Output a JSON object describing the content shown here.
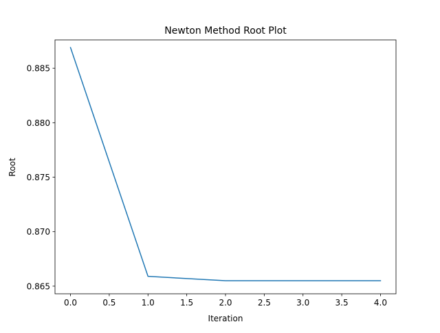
{
  "chart_data": {
    "type": "line",
    "title": "Newton Method Root Plot",
    "xlabel": "Iteration",
    "ylabel": "Root",
    "xlim": [
      -0.2,
      4.2
    ],
    "ylim": [
      0.8643,
      0.8876
    ],
    "xticks": [
      0.0,
      0.5,
      1.0,
      1.5,
      2.0,
      2.5,
      3.0,
      3.5,
      4.0
    ],
    "xtick_labels": [
      "0.0",
      "0.5",
      "1.0",
      "1.5",
      "2.0",
      "2.5",
      "3.0",
      "3.5",
      "4.0"
    ],
    "yticks": [
      0.865,
      0.87,
      0.875,
      0.88,
      0.885
    ],
    "ytick_labels": [
      "0.865",
      "0.870",
      "0.875",
      "0.880",
      "0.885"
    ],
    "grid": false,
    "series": [
      {
        "color": "#1f77b4",
        "x": [
          0,
          1,
          2,
          3,
          4
        ],
        "y": [
          0.8869,
          0.8659,
          0.8655,
          0.8655,
          0.8655
        ]
      }
    ]
  }
}
